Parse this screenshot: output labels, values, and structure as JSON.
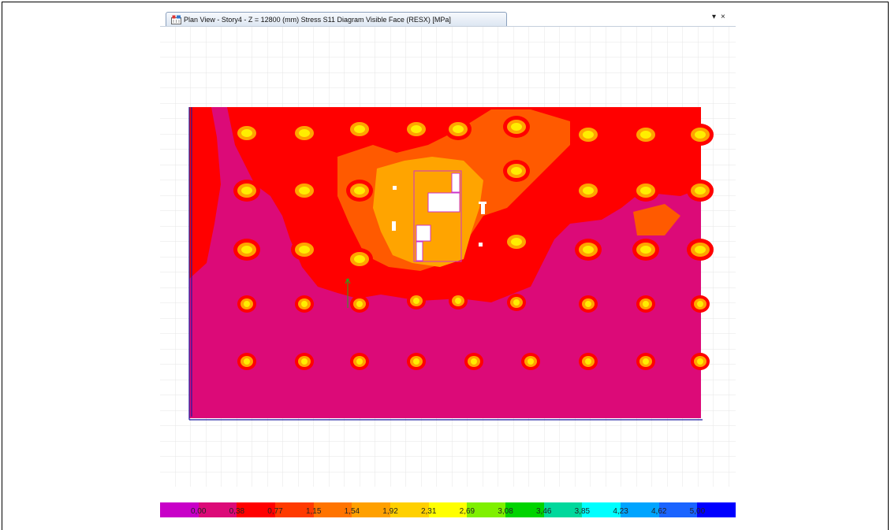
{
  "window": {
    "tab_title": "Plan View - Story4 - Z = 12800 (mm)   Stress S11 Diagram  Visible Face   (RESX)  [MPa]",
    "menu_glyph": "▾",
    "close_glyph": "×"
  },
  "plot": {
    "axis_label": "Y",
    "colors": {
      "background_region": "#dc0a78",
      "low": "#ff0000",
      "mid": "#ff5a00",
      "high": "#ffa400",
      "peak": "#ffee00",
      "frame": "#1a1aa0"
    }
  },
  "legend": {
    "labels": [
      "0,00",
      "0,38",
      "0,77",
      "1,15",
      "1,54",
      "1,92",
      "2,31",
      "2,69",
      "3,08",
      "3,46",
      "3,85",
      "4,23",
      "4,62",
      "5,00"
    ],
    "colors": [
      "#c800c8",
      "#dc0a78",
      "#ff0000",
      "#ff3a00",
      "#ff7400",
      "#ffa000",
      "#ffd000",
      "#ffff00",
      "#7ff000",
      "#00d400",
      "#00d89c",
      "#00ffff",
      "#00a4ff",
      "#1a64ff",
      "#0000ff"
    ]
  }
}
